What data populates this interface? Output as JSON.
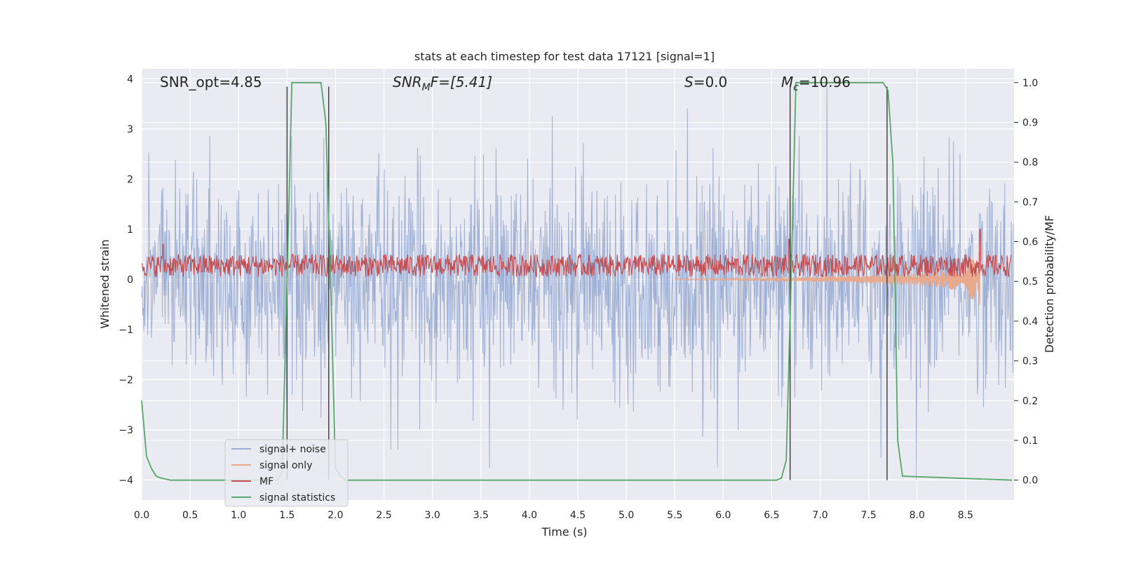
{
  "chart_data": {
    "type": "line",
    "title": "stats at each timestep for test data 17121 [signal=1]",
    "xlabel": "Time (s)",
    "ylabel_left": "Whitened strain",
    "ylabel_right": "Detection probability/MF",
    "xlim": [
      0.0,
      9.0
    ],
    "ylim_left": [
      -4.4,
      4.2
    ],
    "ylim_right": [
      -0.05,
      1.035
    ],
    "x_ticks": [
      "0.0",
      "0.5",
      "1.0",
      "1.5",
      "2.0",
      "2.5",
      "3.0",
      "3.5",
      "4.0",
      "4.5",
      "5.0",
      "5.5",
      "6.0",
      "6.5",
      "7.0",
      "7.5",
      "8.0",
      "8.5"
    ],
    "y_ticks_left": [
      "−4",
      "−3",
      "−2",
      "−1",
      "0",
      "1",
      "2",
      "3",
      "4"
    ],
    "y_ticks_right": [
      "0.0",
      "0.1",
      "0.2",
      "0.3",
      "0.4",
      "0.5",
      "0.6",
      "0.7",
      "0.8",
      "0.9",
      "1.0"
    ],
    "grid": true,
    "annotations": {
      "snr_opt": "SNR_opt=4.85",
      "snr_mf_main": "SNR",
      "snr_mf_sub": "M",
      "snr_mf_rest": "F=[5.41]",
      "s_main": "S",
      "s_rest": "=0.0",
      "mc_main": "M",
      "mc_sub": "c",
      "mc_rest": "=10.96"
    },
    "legend_position": "lower-left",
    "series": [
      {
        "name": "signal+ noise",
        "color": "#9aadd3",
        "axis": "left",
        "description_values": {
          "approx_band": [
            -1.7,
            1.5
          ],
          "peak_max": 3.85,
          "peak_min": -4.0
        }
      },
      {
        "name": "signal only",
        "color": "#e8a98c",
        "axis": "left",
        "x": [
          5.5,
          6.0,
          6.5,
          7.0,
          7.5,
          8.0,
          8.3,
          8.5,
          8.65
        ],
        "amplitude": [
          0.01,
          0.02,
          0.03,
          0.05,
          0.08,
          0.12,
          0.18,
          0.28,
          0.55
        ]
      },
      {
        "name": "MF",
        "color": "#c44e52",
        "axis": "left",
        "baseline_range": [
          0.05,
          0.5
        ],
        "spikes": [
          {
            "x": 0.22,
            "y": 0.7
          },
          {
            "x": 6.68,
            "y": 0.8
          },
          {
            "x": 8.65,
            "y": 1.0
          }
        ]
      },
      {
        "name": "signal statistics",
        "color": "#55a868",
        "axis": "right",
        "x": [
          0.0,
          0.05,
          0.1,
          0.15,
          0.2,
          0.3,
          1.4,
          1.45,
          1.5,
          1.55,
          1.6,
          1.85,
          1.9,
          1.95,
          2.0,
          2.05,
          2.1,
          6.55,
          6.6,
          6.65,
          6.7,
          6.75,
          7.65,
          7.7,
          7.75,
          7.8,
          7.85,
          8.98
        ],
        "values": [
          0.2,
          0.06,
          0.03,
          0.01,
          0.005,
          0.0,
          0.0,
          0.02,
          0.5,
          1.0,
          1.0,
          1.0,
          0.9,
          0.5,
          0.03,
          0.01,
          0.0,
          0.0,
          0.005,
          0.05,
          0.5,
          1.0,
          1.0,
          0.98,
          0.8,
          0.1,
          0.01,
          0.0
        ]
      }
    ],
    "vertical_markers": {
      "color": "#444444",
      "x": [
        1.5,
        1.93,
        6.69,
        7.69
      ],
      "y_range_right": [
        0.0,
        0.99
      ]
    }
  }
}
